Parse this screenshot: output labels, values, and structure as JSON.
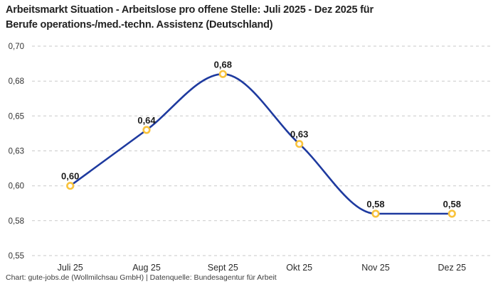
{
  "title": {
    "line1": "Arbeitsmarkt Situation - Arbeitslose pro offene Stelle: Juli 2025 - Dez 2025 für",
    "line2": "Berufe operations-/med.-techn. Assistenz (Deutschland)"
  },
  "footer": {
    "text": "Chart: gute-jobs.de (Wollmilchsau GmbH) | Datenquelle: Bundesagentur für Arbeit"
  },
  "chart_data": {
    "type": "line",
    "title": "Arbeitsmarkt Situation - Arbeitslose pro offene Stelle: Juli 2025 - Dez 2025 für Berufe operations-/med.-techn. Assistenz (Deutschland)",
    "categories": [
      "Juli 25",
      "Aug 25",
      "Sept 25",
      "Okt 25",
      "Nov 25",
      "Dez 25"
    ],
    "values": [
      0.6,
      0.64,
      0.68,
      0.63,
      0.58,
      0.58
    ],
    "point_labels": [
      "0,60",
      "0,64",
      "0,68",
      "0,63",
      "0,58",
      "0,58"
    ],
    "y_ticks": [
      {
        "value": 0.7,
        "label": "0,70"
      },
      {
        "value": 0.675,
        "label": "0,68"
      },
      {
        "value": 0.65,
        "label": "0,65"
      },
      {
        "value": 0.625,
        "label": "0,63"
      },
      {
        "value": 0.6,
        "label": "0,60"
      },
      {
        "value": 0.575,
        "label": "0,58"
      },
      {
        "value": 0.55,
        "label": "0,55"
      }
    ],
    "ylim": [
      0.55,
      0.7
    ],
    "xlabel": "",
    "ylabel": "",
    "grid": "horizontal-dashed",
    "legend": "none",
    "colors": {
      "line": "#1e3a9f",
      "marker_ring": "#f9c33c",
      "marker_fill": "#ffffff",
      "grid": "#c9c9c9",
      "tick_text": "#333333",
      "point_label_text": "#1a1a1a"
    }
  }
}
